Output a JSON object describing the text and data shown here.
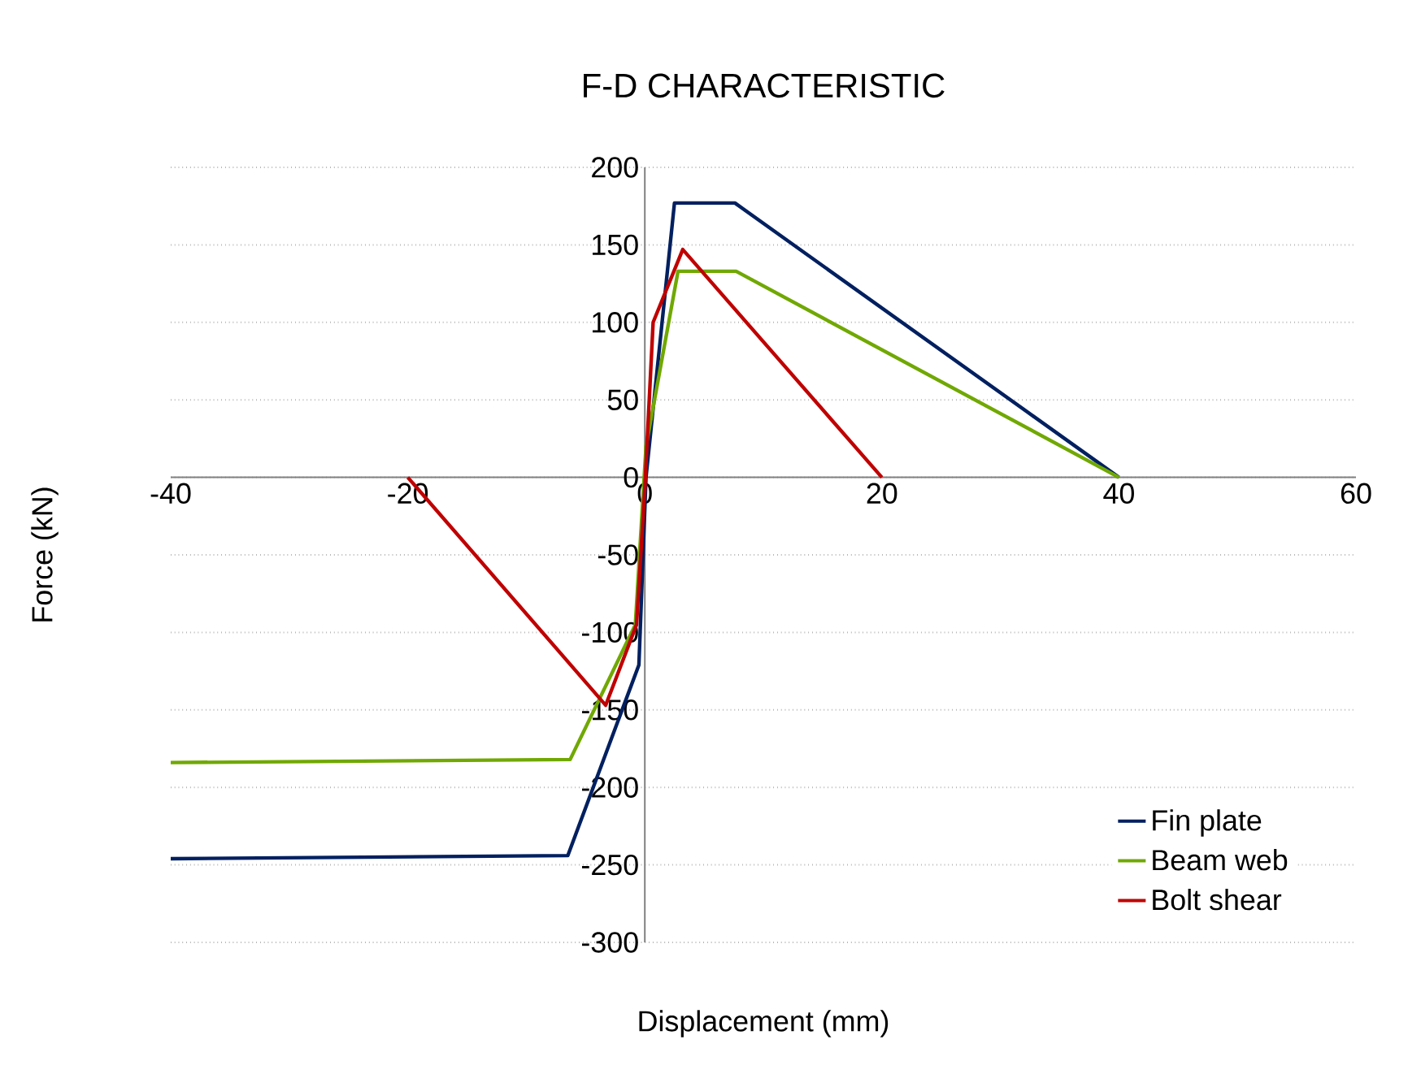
{
  "chart_data": {
    "type": "line",
    "title": "F-D CHARACTERISTIC",
    "xlabel": "Displacement (mm)",
    "ylabel": "Force (kN)",
    "xlim": [
      -40,
      60
    ],
    "ylim": [
      -300,
      200
    ],
    "xticks": [
      -40,
      -20,
      0,
      20,
      40,
      60
    ],
    "yticks": [
      -300,
      -250,
      -200,
      -150,
      -100,
      -50,
      0,
      50,
      100,
      150,
      200
    ],
    "grid": "y",
    "legend": "bottom right",
    "marker": "none",
    "line_style": "solid",
    "series": [
      {
        "name": "Fin plate",
        "color": "#002060",
        "x": [
          -40,
          -6.5,
          -0.5,
          0.1,
          2.5,
          7.6,
          40
        ],
        "values": [
          -246,
          -244,
          -121,
          0,
          177,
          177,
          0
        ]
      },
      {
        "name": "Beam web",
        "color": "#70a800",
        "x": [
          -40,
          -6.3,
          -0.8,
          0.1,
          2.8,
          7.7,
          40
        ],
        "values": [
          -184,
          -182,
          -95,
          20,
          133,
          133,
          0
        ]
      },
      {
        "name": "Bolt shear",
        "color": "#c00000",
        "x": [
          -20,
          -3.3,
          -0.7,
          0,
          0.7,
          3.2,
          20
        ],
        "values": [
          0,
          -147,
          -95,
          -7,
          100,
          147,
          0
        ]
      }
    ]
  }
}
